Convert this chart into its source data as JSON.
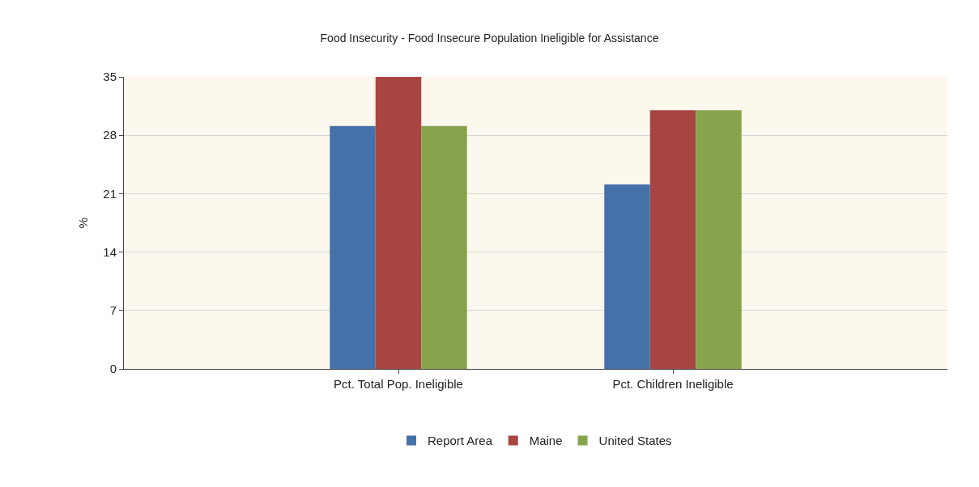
{
  "chart_data": {
    "type": "bar",
    "title": "Food Insecurity - Food Insecure Population Ineligible for Assistance",
    "ylabel": "%",
    "categories": [
      "Pct. Total Pop. Ineligible",
      "Pct. Children Ineligible"
    ],
    "series": [
      {
        "name": "Report Area",
        "color": "#4571a8",
        "values": [
          29.1,
          22.1
        ]
      },
      {
        "name": "Maine",
        "color": "#a84542",
        "values": [
          35,
          31
        ]
      },
      {
        "name": "United States",
        "color": "#87a44d",
        "values": [
          29.1,
          31
        ]
      }
    ],
    "ylim": [
      0,
      35
    ],
    "yticks": [
      0,
      7,
      14,
      21,
      28,
      35
    ],
    "grid": "y",
    "legend": "bottom"
  }
}
